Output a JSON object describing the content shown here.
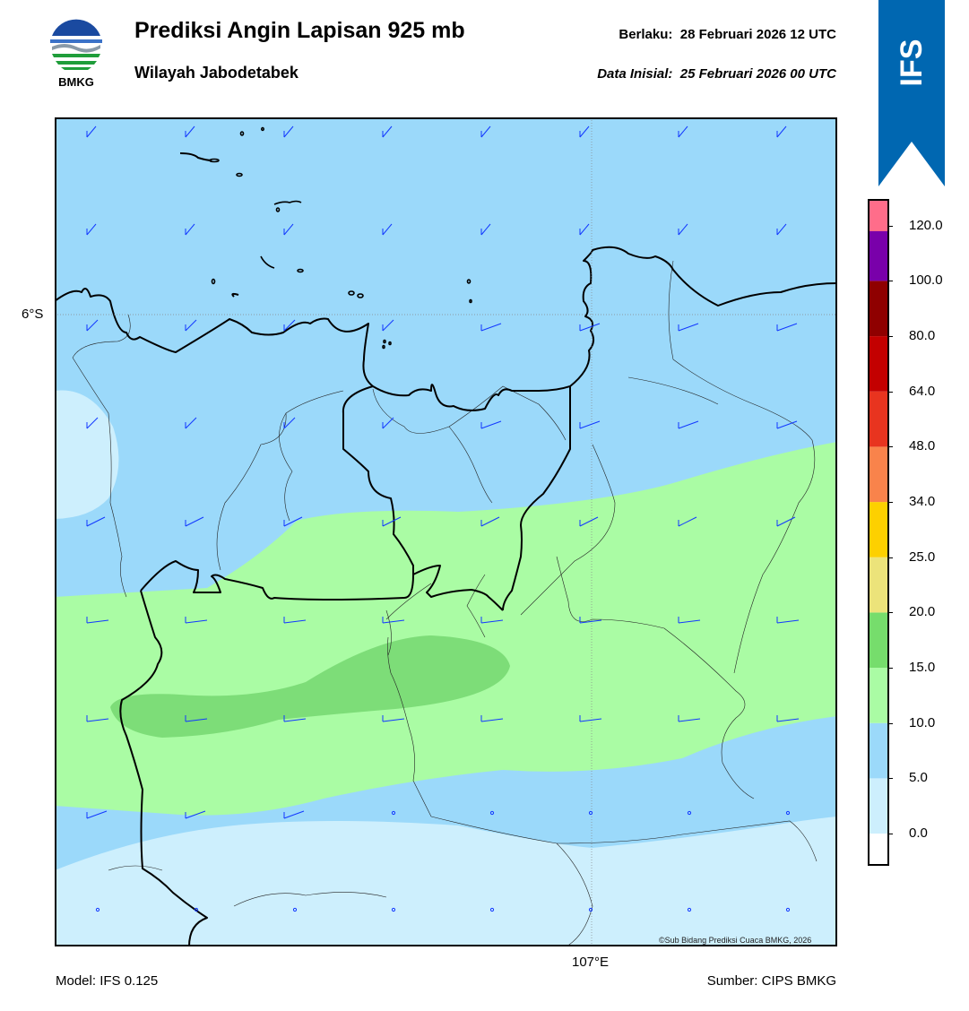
{
  "header": {
    "title": "Prediksi Angin Lapisan 925 mb",
    "subtitle": "Wilayah Jabodetabek",
    "valid_label": "Berlaku:",
    "valid_value": "28 Februari 2026 12 UTC",
    "init_label": "Data Inisial:",
    "init_value": "25 Februari 2026 00 UTC",
    "logo_text": "BMKG",
    "model_badge": "IFS"
  },
  "map": {
    "lat_label": "6°S",
    "lon_label": "107°E",
    "copyright": "©Sub Bidang Prediksi Cuaca BMKG, 2026"
  },
  "footer": {
    "model": "Model: IFS 0.125",
    "source": "Sumber: CIPS BMKG"
  },
  "colorbar": {
    "ticks": [
      "0.0",
      "5.0",
      "10.0",
      "15.0",
      "20.0",
      "25.0",
      "34.0",
      "48.0",
      "64.0",
      "80.0",
      "100.0",
      "120.0"
    ],
    "colors": [
      "#ffffff",
      "#cdeffd",
      "#9bd9fa",
      "#aafca4",
      "#76dd6c",
      "#ece37a",
      "#fdd000",
      "#f9834b",
      "#e8341f",
      "#c30000",
      "#8f0000",
      "#7900aa",
      "#ff6d8a"
    ]
  },
  "colors": {
    "calm": "#cdeffd",
    "light": "#9bd9fa",
    "moderate": "#aafca4",
    "strong": "#7ddd78",
    "barb": "#1238ff",
    "ribbon": "#0067b1"
  }
}
